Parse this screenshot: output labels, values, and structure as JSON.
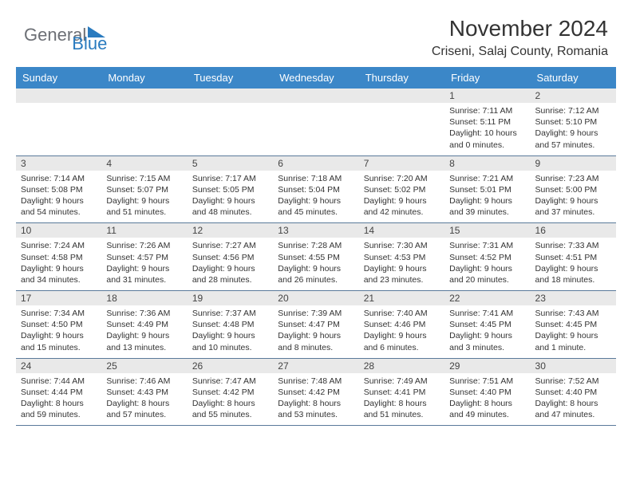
{
  "brand": {
    "part1": "General",
    "part2": "Blue"
  },
  "title": "November 2024",
  "location": "Criseni, Salaj County, Romania",
  "colors": {
    "header_bg": "#3b87c8",
    "daynum_bg": "#e9e9e9",
    "row_divider": "#5a7a9a",
    "brand_gray": "#6c6f75",
    "brand_blue": "#2a7bbf"
  },
  "weekdays": [
    "Sunday",
    "Monday",
    "Tuesday",
    "Wednesday",
    "Thursday",
    "Friday",
    "Saturday"
  ],
  "weeks": [
    [
      null,
      null,
      null,
      null,
      null,
      {
        "n": "1",
        "sr": "7:11 AM",
        "ss": "5:11 PM",
        "dl": "10 hours and 0 minutes."
      },
      {
        "n": "2",
        "sr": "7:12 AM",
        "ss": "5:10 PM",
        "dl": "9 hours and 57 minutes."
      }
    ],
    [
      {
        "n": "3",
        "sr": "7:14 AM",
        "ss": "5:08 PM",
        "dl": "9 hours and 54 minutes."
      },
      {
        "n": "4",
        "sr": "7:15 AM",
        "ss": "5:07 PM",
        "dl": "9 hours and 51 minutes."
      },
      {
        "n": "5",
        "sr": "7:17 AM",
        "ss": "5:05 PM",
        "dl": "9 hours and 48 minutes."
      },
      {
        "n": "6",
        "sr": "7:18 AM",
        "ss": "5:04 PM",
        "dl": "9 hours and 45 minutes."
      },
      {
        "n": "7",
        "sr": "7:20 AM",
        "ss": "5:02 PM",
        "dl": "9 hours and 42 minutes."
      },
      {
        "n": "8",
        "sr": "7:21 AM",
        "ss": "5:01 PM",
        "dl": "9 hours and 39 minutes."
      },
      {
        "n": "9",
        "sr": "7:23 AM",
        "ss": "5:00 PM",
        "dl": "9 hours and 37 minutes."
      }
    ],
    [
      {
        "n": "10",
        "sr": "7:24 AM",
        "ss": "4:58 PM",
        "dl": "9 hours and 34 minutes."
      },
      {
        "n": "11",
        "sr": "7:26 AM",
        "ss": "4:57 PM",
        "dl": "9 hours and 31 minutes."
      },
      {
        "n": "12",
        "sr": "7:27 AM",
        "ss": "4:56 PM",
        "dl": "9 hours and 28 minutes."
      },
      {
        "n": "13",
        "sr": "7:28 AM",
        "ss": "4:55 PM",
        "dl": "9 hours and 26 minutes."
      },
      {
        "n": "14",
        "sr": "7:30 AM",
        "ss": "4:53 PM",
        "dl": "9 hours and 23 minutes."
      },
      {
        "n": "15",
        "sr": "7:31 AM",
        "ss": "4:52 PM",
        "dl": "9 hours and 20 minutes."
      },
      {
        "n": "16",
        "sr": "7:33 AM",
        "ss": "4:51 PM",
        "dl": "9 hours and 18 minutes."
      }
    ],
    [
      {
        "n": "17",
        "sr": "7:34 AM",
        "ss": "4:50 PM",
        "dl": "9 hours and 15 minutes."
      },
      {
        "n": "18",
        "sr": "7:36 AM",
        "ss": "4:49 PM",
        "dl": "9 hours and 13 minutes."
      },
      {
        "n": "19",
        "sr": "7:37 AM",
        "ss": "4:48 PM",
        "dl": "9 hours and 10 minutes."
      },
      {
        "n": "20",
        "sr": "7:39 AM",
        "ss": "4:47 PM",
        "dl": "9 hours and 8 minutes."
      },
      {
        "n": "21",
        "sr": "7:40 AM",
        "ss": "4:46 PM",
        "dl": "9 hours and 6 minutes."
      },
      {
        "n": "22",
        "sr": "7:41 AM",
        "ss": "4:45 PM",
        "dl": "9 hours and 3 minutes."
      },
      {
        "n": "23",
        "sr": "7:43 AM",
        "ss": "4:45 PM",
        "dl": "9 hours and 1 minute."
      }
    ],
    [
      {
        "n": "24",
        "sr": "7:44 AM",
        "ss": "4:44 PM",
        "dl": "8 hours and 59 minutes."
      },
      {
        "n": "25",
        "sr": "7:46 AM",
        "ss": "4:43 PM",
        "dl": "8 hours and 57 minutes."
      },
      {
        "n": "26",
        "sr": "7:47 AM",
        "ss": "4:42 PM",
        "dl": "8 hours and 55 minutes."
      },
      {
        "n": "27",
        "sr": "7:48 AM",
        "ss": "4:42 PM",
        "dl": "8 hours and 53 minutes."
      },
      {
        "n": "28",
        "sr": "7:49 AM",
        "ss": "4:41 PM",
        "dl": "8 hours and 51 minutes."
      },
      {
        "n": "29",
        "sr": "7:51 AM",
        "ss": "4:40 PM",
        "dl": "8 hours and 49 minutes."
      },
      {
        "n": "30",
        "sr": "7:52 AM",
        "ss": "4:40 PM",
        "dl": "8 hours and 47 minutes."
      }
    ]
  ],
  "labels": {
    "sunrise": "Sunrise:",
    "sunset": "Sunset:",
    "daylight": "Daylight:"
  }
}
